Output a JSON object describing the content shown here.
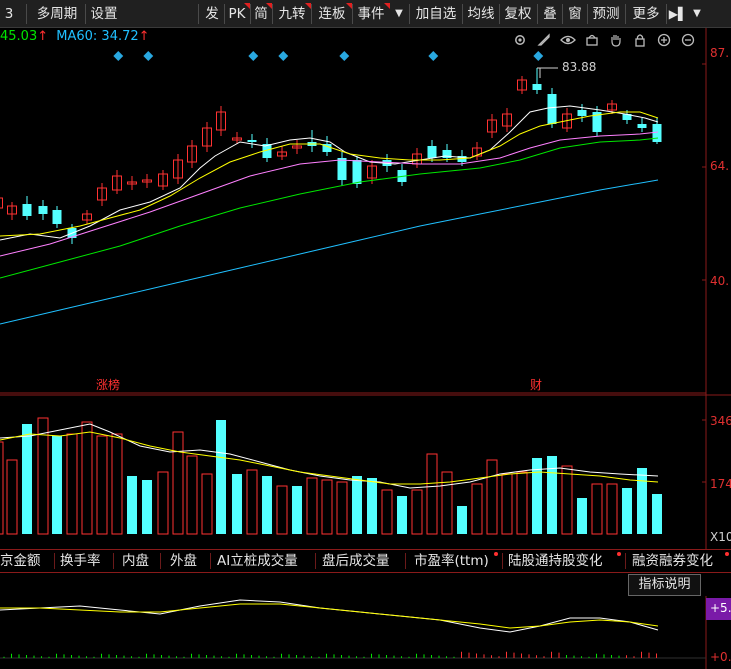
{
  "toolbar": {
    "items": [
      "3",
      "多周期",
      "设置",
      "发",
      "PK",
      "简",
      "九转",
      "连板",
      "事件",
      "加自选",
      "均线",
      "复权",
      "叠",
      "窗",
      "预测",
      "更多"
    ],
    "tail_arrow": "▶▌"
  },
  "ma_row": {
    "ma_a": "45.03",
    "ma60_label": "MA60: 34.72",
    "up_arrow": "↑"
  },
  "price_axis": [
    "87.",
    "64.",
    "40."
  ],
  "volume_axis": [
    "346",
    "174",
    "X10"
  ],
  "indicator_axis": [
    "+5.",
    "+0."
  ],
  "annotations": {
    "high_price": "83.88",
    "zhangbang_label": "涨榜",
    "cai_label": "财"
  },
  "indicator_tabs": [
    "京金额",
    "换手率",
    "内盘",
    "外盘",
    "AI立桩成交量",
    "盘后成交量",
    "市盈率(ttm)",
    "陆股通持股变化",
    "融资融券变化"
  ],
  "help_button": "指标说明",
  "colors": {
    "up": "#ff3232",
    "down": "#54ffff",
    "ma5": "#ffffff",
    "ma10": "#ffff00",
    "ma20": "#ff80ff",
    "ma30": "#00e600",
    "ma60": "#20c0ff",
    "axis": "#8a1a1a",
    "background": "#000000"
  },
  "icons": [
    "gear-icon",
    "pen-icon",
    "eye-icon",
    "basket-icon",
    "hand-icon",
    "lock-icon",
    "zoom-in-icon",
    "zoom-out-icon"
  ]
}
